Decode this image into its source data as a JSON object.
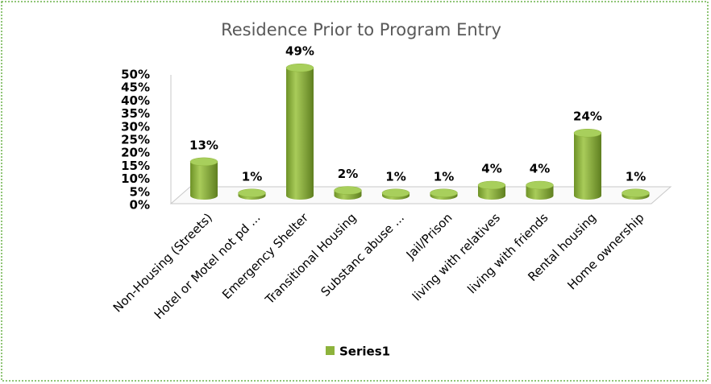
{
  "chart_data": {
    "type": "bar3d",
    "title": "Residence Prior to Program Entry",
    "categories": [
      "Non-Housing (Streets)",
      "Hotel or Motel not pd ...",
      "Emergency Shelter",
      "Transitional Housing",
      "Substanc abuse ...",
      "Jail/Prison",
      "living with  relatives",
      "living with  friends",
      "Rental housing",
      "Home ownership"
    ],
    "series": [
      {
        "name": "Series1",
        "color": "#8db33c",
        "values": [
          13,
          1,
          49,
          2,
          1,
          1,
          4,
          4,
          24,
          1
        ],
        "value_labels": [
          "13%",
          "1%",
          "49%",
          "2%",
          "1%",
          "1%",
          "4%",
          "4%",
          "24%",
          "1%"
        ]
      }
    ],
    "ylim": [
      0,
      50
    ],
    "yticks": [
      {
        "value": 0,
        "label": "0%"
      },
      {
        "value": 5,
        "label": "5%"
      },
      {
        "value": 10,
        "label": "10%"
      },
      {
        "value": 15,
        "label": "15%"
      },
      {
        "value": 20,
        "label": "20%"
      },
      {
        "value": 25,
        "label": "25%"
      },
      {
        "value": 30,
        "label": "30%"
      },
      {
        "value": 35,
        "label": "35%"
      },
      {
        "value": 40,
        "label": "40%"
      },
      {
        "value": 45,
        "label": "45%"
      },
      {
        "value": 50,
        "label": "50%"
      }
    ],
    "legend": "bottom"
  }
}
